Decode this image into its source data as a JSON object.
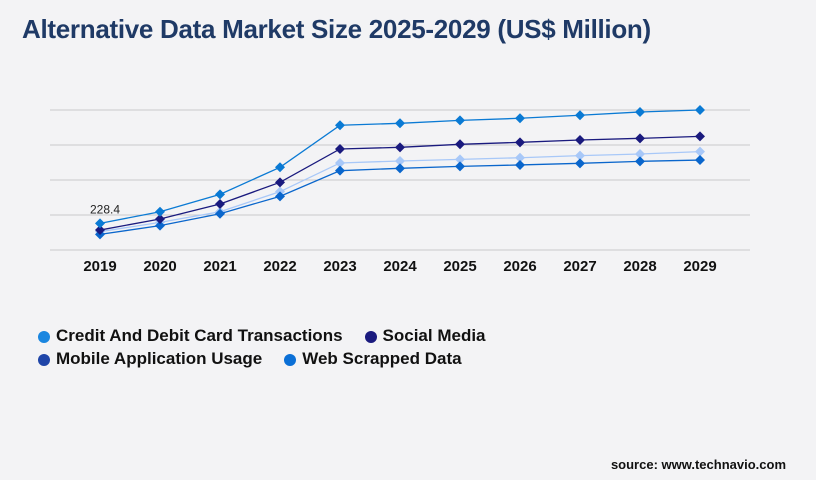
{
  "chart_data": {
    "type": "line",
    "title": "Alternative Data Market Size 2025-2029 (US$ Million)",
    "x": [
      "2019",
      "2020",
      "2021",
      "2022",
      "2023",
      "2024",
      "2025",
      "2026",
      "2027",
      "2028",
      "2029"
    ],
    "ylim": [
      0,
      1200
    ],
    "grid": true,
    "legend_position": "bottom-left",
    "annotation": "228.4",
    "series": [
      {
        "name": "Credit And Debit Card Transactions",
        "color": "#0a7ad4",
        "legend_color": "#1a86e0",
        "values": [
          228.4,
          328,
          477,
          709,
          1069,
          1086,
          1111,
          1129,
          1155,
          1183,
          1200
        ]
      },
      {
        "name": "Social Media",
        "color": "#1a1a7e",
        "legend_color": "#1a1a7e",
        "values": [
          171,
          266,
          394,
          580,
          866,
          880,
          906,
          923,
          943,
          957,
          974
        ]
      },
      {
        "name": "Mobile Application Usage",
        "color": "#a8c8f8",
        "legend_color": "#1f45a8",
        "values": [
          157,
          237,
          328,
          500,
          746,
          763,
          777,
          791,
          809,
          823,
          843
        ]
      },
      {
        "name": "Web Scrapped Data",
        "color": "#0a66cc",
        "legend_color": "#0a6fd6",
        "values": [
          134,
          209,
          311,
          460,
          680,
          700,
          717,
          729,
          743,
          760,
          771
        ]
      }
    ]
  },
  "source": "source: www.technavio.com"
}
